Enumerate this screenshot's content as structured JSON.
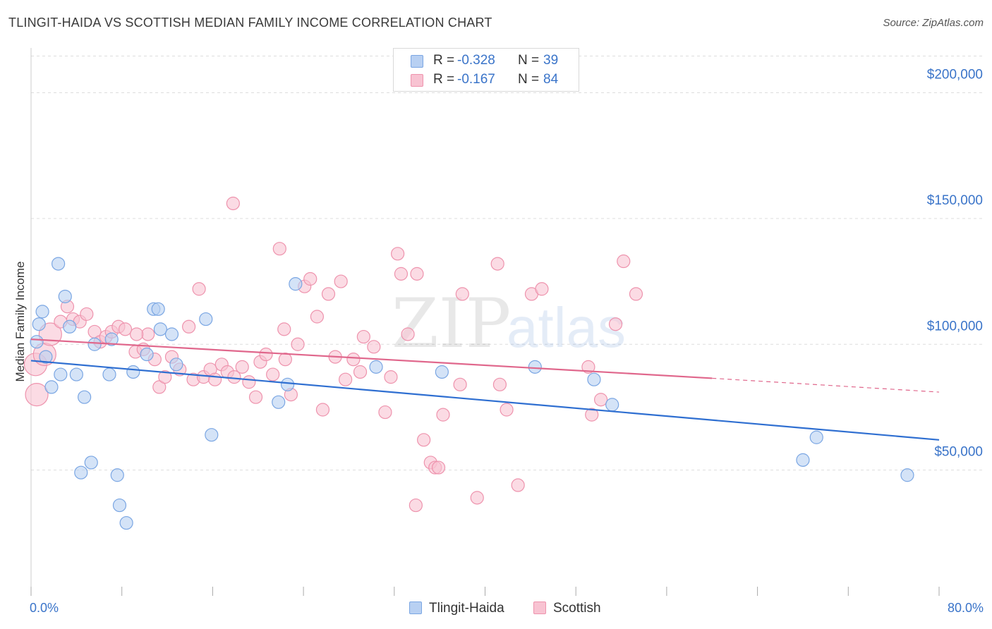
{
  "title": "TLINGIT-HAIDA VS SCOTTISH MEDIAN FAMILY INCOME CORRELATION CHART",
  "source": "Source: ZipAtlas.com",
  "watermark": {
    "zip": "ZIP",
    "atlas": "atlas"
  },
  "legend_top": {
    "rows": [
      {
        "r_label": "R =",
        "r_value": "-0.328",
        "n_label": "N =",
        "n_value": "39"
      },
      {
        "r_label": "R =",
        "r_value": "-0.167",
        "n_label": "N =",
        "n_value": "84"
      }
    ]
  },
  "colors": {
    "blue_fill": "#b8d0f2",
    "blue_stroke": "#7aa6e3",
    "blue_line": "#2f6fd1",
    "pink_fill": "#f8c3d2",
    "pink_stroke": "#ee93ad",
    "pink_line": "#e0678c",
    "axis_text": "#3a74c9",
    "grid": "#dddddd"
  },
  "chart_data": {
    "type": "scatter",
    "title": "TLINGIT-HAIDA VS SCOTTISH MEDIAN FAMILY INCOME CORRELATION CHART",
    "xlabel": "",
    "ylabel": "Median Family Income",
    "xlim": [
      0,
      80
    ],
    "ylim": [
      0,
      215000
    ],
    "x_tick_labels": [
      "0.0%",
      "80.0%"
    ],
    "y_ticks": [
      50000,
      100000,
      150000,
      200000
    ],
    "y_tick_labels": [
      "$50,000",
      "$100,000",
      "$150,000",
      "$200,000"
    ],
    "grid": true,
    "series": [
      {
        "name": "Tlingit-Haida",
        "color": "blue",
        "points": [
          [
            0.5,
            101000
          ],
          [
            0.7,
            108000
          ],
          [
            1.0,
            113000
          ],
          [
            1.3,
            95000
          ],
          [
            1.8,
            83000
          ],
          [
            2.4,
            132000
          ],
          [
            2.6,
            88000
          ],
          [
            3.0,
            119000
          ],
          [
            3.4,
            107000
          ],
          [
            4.0,
            88000
          ],
          [
            4.7,
            79000
          ],
          [
            4.4,
            49000
          ],
          [
            5.3,
            53000
          ],
          [
            5.6,
            100000
          ],
          [
            6.9,
            88000
          ],
          [
            7.1,
            102000
          ],
          [
            7.6,
            48000
          ],
          [
            7.8,
            36000
          ],
          [
            8.4,
            29000
          ],
          [
            9.0,
            89000
          ],
          [
            10.2,
            96000
          ],
          [
            10.8,
            114000
          ],
          [
            11.2,
            114000
          ],
          [
            11.4,
            106000
          ],
          [
            12.4,
            104000
          ],
          [
            12.8,
            92000
          ],
          [
            15.4,
            110000
          ],
          [
            15.9,
            64000
          ],
          [
            21.8,
            77000
          ],
          [
            22.6,
            84000
          ],
          [
            23.3,
            124000
          ],
          [
            30.4,
            91000
          ],
          [
            36.2,
            89000
          ],
          [
            44.4,
            91000
          ],
          [
            49.6,
            86000
          ],
          [
            51.2,
            76000
          ],
          [
            68.0,
            54000
          ],
          [
            69.2,
            63000
          ],
          [
            77.2,
            48000
          ]
        ],
        "trend": {
          "x": [
            0,
            80
          ],
          "y": [
            93500,
            62000
          ]
        }
      },
      {
        "name": "Scottish",
        "color": "pink",
        "points": [
          [
            0.4,
            92000
          ],
          [
            0.5,
            80000
          ],
          [
            1.2,
            96000
          ],
          [
            1.7,
            104000
          ],
          [
            2.6,
            109000
          ],
          [
            3.2,
            115000
          ],
          [
            3.7,
            110000
          ],
          [
            4.3,
            109000
          ],
          [
            4.9,
            112000
          ],
          [
            5.6,
            105000
          ],
          [
            6.1,
            101000
          ],
          [
            6.6,
            103000
          ],
          [
            7.1,
            105000
          ],
          [
            7.7,
            107000
          ],
          [
            8.3,
            106000
          ],
          [
            9.2,
            97000
          ],
          [
            9.9,
            98000
          ],
          [
            10.3,
            104000
          ],
          [
            10.9,
            94000
          ],
          [
            11.3,
            83000
          ],
          [
            11.8,
            87000
          ],
          [
            12.4,
            95000
          ],
          [
            13.1,
            90000
          ],
          [
            13.9,
            107000
          ],
          [
            14.3,
            86000
          ],
          [
            14.8,
            122000
          ],
          [
            15.2,
            87000
          ],
          [
            15.8,
            90000
          ],
          [
            16.2,
            86000
          ],
          [
            16.8,
            92000
          ],
          [
            17.3,
            89000
          ],
          [
            17.9,
            87000
          ],
          [
            18.6,
            91000
          ],
          [
            19.2,
            85000
          ],
          [
            19.8,
            79000
          ],
          [
            20.2,
            93000
          ],
          [
            20.7,
            96000
          ],
          [
            21.3,
            88000
          ],
          [
            21.9,
            138000
          ],
          [
            22.4,
            94000
          ],
          [
            22.9,
            80000
          ],
          [
            23.5,
            100000
          ],
          [
            24.1,
            123000
          ],
          [
            25.2,
            111000
          ],
          [
            25.7,
            74000
          ],
          [
            26.2,
            120000
          ],
          [
            26.8,
            95000
          ],
          [
            27.3,
            125000
          ],
          [
            27.7,
            86000
          ],
          [
            28.4,
            94000
          ],
          [
            29.0,
            89000
          ],
          [
            29.3,
            103000
          ],
          [
            30.2,
            99000
          ],
          [
            31.2,
            73000
          ],
          [
            31.7,
            87000
          ],
          [
            32.3,
            136000
          ],
          [
            32.6,
            128000
          ],
          [
            33.2,
            104000
          ],
          [
            34.0,
            128000
          ],
          [
            34.6,
            62000
          ],
          [
            35.2,
            53000
          ],
          [
            35.6,
            51000
          ],
          [
            35.9,
            51000
          ],
          [
            36.3,
            72000
          ],
          [
            37.8,
            84000
          ],
          [
            41.1,
            132000
          ],
          [
            41.3,
            84000
          ],
          [
            41.9,
            74000
          ],
          [
            42.9,
            44000
          ],
          [
            44.1,
            120000
          ],
          [
            45.0,
            122000
          ],
          [
            49.1,
            91000
          ],
          [
            49.4,
            72000
          ],
          [
            50.2,
            78000
          ],
          [
            51.5,
            108000
          ],
          [
            52.2,
            133000
          ],
          [
            53.3,
            120000
          ],
          [
            17.8,
            156000
          ],
          [
            33.9,
            36000
          ],
          [
            39.3,
            39000
          ],
          [
            38.0,
            120000
          ],
          [
            22.3,
            106000
          ],
          [
            24.6,
            126000
          ],
          [
            9.3,
            104000
          ]
        ],
        "trend_solid": {
          "x": [
            0,
            60
          ],
          "y": [
            102000,
            86500
          ]
        },
        "trend_dashed": {
          "x": [
            60,
            80
          ],
          "y": [
            86500,
            81000
          ]
        }
      }
    ]
  },
  "legend_bottom": [
    "Tlingit-Haida",
    "Scottish"
  ]
}
